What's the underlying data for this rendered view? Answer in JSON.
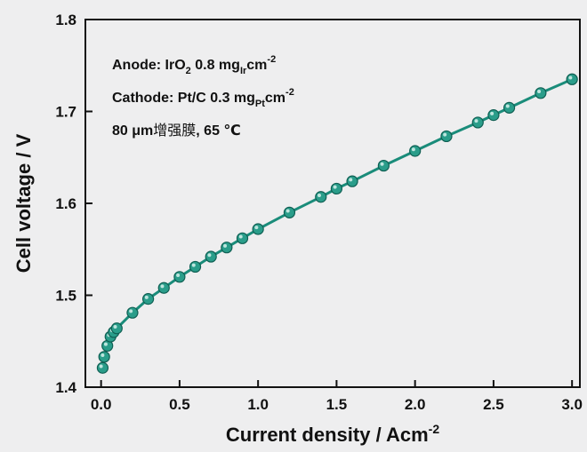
{
  "chart_data": {
    "type": "line",
    "xlabel": "Current density / Acm",
    "xlabel_sup": "-2",
    "ylabel": "Cell voltage / V",
    "xlim": [
      -0.1,
      3.05
    ],
    "ylim": [
      1.4,
      1.8
    ],
    "xticks": [
      "0.0",
      "0.5",
      "1.0",
      "1.5",
      "2.0",
      "2.5",
      "3.0"
    ],
    "yticks": [
      "1.4",
      "1.5",
      "1.6",
      "1.7",
      "1.8"
    ],
    "annotations": {
      "anode_prefix": "Anode: IrO",
      "anode_sub1": "2",
      "anode_mid": " 0.8 mg",
      "anode_sub2": "Ir",
      "anode_unit": "cm",
      "anode_sup": "-2",
      "cathode_prefix": "Cathode: Pt/C 0.3 mg",
      "cathode_sub": "Pt",
      "cathode_unit": "cm",
      "cathode_sup": "-2",
      "membrane_prefix": "80 μm",
      "membrane_cjk": "增强膜",
      "membrane_suffix": ", 65 ℃"
    },
    "series": [
      {
        "color": "#1a8c7a",
        "marker_color": "#2a9d8a",
        "x": [
          0.01,
          0.02,
          0.04,
          0.06,
          0.08,
          0.1,
          0.2,
          0.3,
          0.4,
          0.5,
          0.6,
          0.7,
          0.8,
          0.9,
          1.0,
          1.2,
          1.4,
          1.5,
          1.6,
          1.8,
          2.0,
          2.2,
          2.4,
          2.5,
          2.6,
          2.8,
          3.0
        ],
        "y": [
          1.421,
          1.433,
          1.445,
          1.455,
          1.46,
          1.464,
          1.481,
          1.496,
          1.508,
          1.52,
          1.531,
          1.542,
          1.552,
          1.562,
          1.572,
          1.59,
          1.607,
          1.616,
          1.624,
          1.641,
          1.657,
          1.673,
          1.688,
          1.696,
          1.704,
          1.72,
          1.735
        ]
      }
    ]
  }
}
